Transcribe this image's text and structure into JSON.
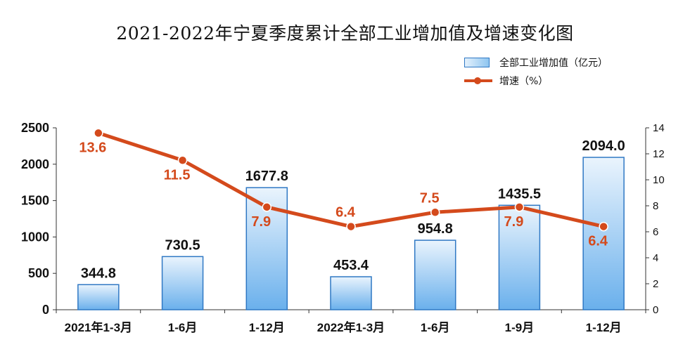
{
  "title": "2021-2022年宁夏季度累计全部工业增加值及增速变化图",
  "legend": {
    "bar_label": "全部工业增加值（亿元）",
    "line_label": "增速（%）"
  },
  "colors": {
    "bar_fill_light": "#eaf4fd",
    "bar_fill_dark": "#6ab0ec",
    "bar_border": "#2f78c4",
    "line": "#d44a1c",
    "growth_label": "#d44a1c",
    "value_label": "#111111"
  },
  "chart_data": {
    "type": "bar",
    "categories": [
      "2021年1-3月",
      "1-6月",
      "1-12月",
      "2022年1-3月",
      "1-6月",
      "1-9月",
      "1-12月"
    ],
    "series": [
      {
        "name": "全部工业增加值（亿元）",
        "type": "bar",
        "axis": "left",
        "values": [
          344.8,
          730.5,
          1677.8,
          453.4,
          954.8,
          1435.5,
          2094.0
        ],
        "labels": [
          "344.8",
          "730.5",
          "1677.8",
          "453.4",
          "954.8",
          "1435.5",
          "2094.0"
        ]
      },
      {
        "name": "增速（%）",
        "type": "line",
        "axis": "right",
        "values": [
          13.6,
          11.5,
          7.9,
          6.4,
          7.5,
          7.9,
          6.4
        ],
        "labels": [
          "13.6",
          "11.5",
          "7.9",
          "6.4",
          "7.5",
          "7.9",
          "6.4"
        ]
      }
    ],
    "y_left": {
      "min": 0,
      "max": 2500,
      "ticks": [
        "0",
        "500",
        "1000",
        "1500",
        "2000",
        "2500"
      ]
    },
    "y_right": {
      "min": 0,
      "max": 14,
      "ticks": [
        "0",
        "2",
        "4",
        "6",
        "8",
        "10",
        "12",
        "14"
      ]
    },
    "grid": false,
    "legend_position": "top-right"
  }
}
